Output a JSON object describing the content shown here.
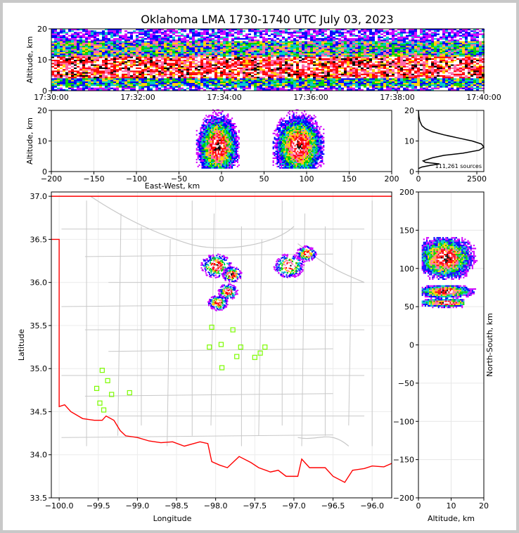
{
  "title": "Oklahoma LMA 1730-1740 UTC July 03, 2023",
  "source_count": "111,261 sources",
  "colors": {
    "density_low": "#0000ff",
    "density_mid": "#00d000",
    "density_high": "#ff0000",
    "density_peak": "#000000",
    "state_border": "#ff0000",
    "county_lines": "#c8c8c8",
    "station_markers": "#7cfc00"
  },
  "chart_data": [
    {
      "panel": "altitude-vs-time",
      "type": "heatmap",
      "xlabel": "",
      "ylabel": "Altitude, km",
      "x_ticks": [
        "17:30:00",
        "17:32:00",
        "17:34:00",
        "17:36:00",
        "17:38:00",
        "17:40:00"
      ],
      "xlim": [
        "17:30:00",
        "17:40:00"
      ],
      "ylim": [
        0,
        20
      ],
      "y_ticks": [
        0,
        10,
        20
      ],
      "grid": false,
      "dense_altitude_band_km": [
        4,
        11
      ]
    },
    {
      "panel": "altitude-vs-east-west",
      "type": "heatmap",
      "xlabel": "East-West, km",
      "ylabel": "Altitude, km",
      "xlim": [
        -200,
        200
      ],
      "x_ticks": [
        -200,
        -150,
        -100,
        -50,
        0,
        50,
        100,
        150,
        200
      ],
      "ylim": [
        0,
        20
      ],
      "y_ticks": [
        0,
        10,
        20
      ],
      "grid": true,
      "clusters": [
        {
          "x_range": [
            -30,
            20
          ],
          "z_range": [
            1,
            20
          ]
        },
        {
          "x_range": [
            60,
            120
          ],
          "z_range": [
            1,
            20
          ]
        }
      ]
    },
    {
      "panel": "altitude-histogram",
      "type": "line",
      "xlabel": "",
      "ylabel": "",
      "xlim": [
        0,
        2800
      ],
      "x_ticks": [
        0,
        2500
      ],
      "ylim": [
        0,
        20
      ],
      "y_ticks": [
        0,
        10,
        20
      ],
      "grid": true,
      "x": [
        0,
        150,
        500,
        900,
        300,
        200,
        600,
        1100,
        1900,
        2600,
        2800,
        2700,
        2300,
        1700,
        1100,
        600,
        300,
        150,
        60,
        20,
        0
      ],
      "y": [
        1,
        1.5,
        2,
        2.5,
        3,
        3.5,
        4.5,
        5.3,
        6,
        7,
        8,
        9,
        10,
        11,
        12,
        13,
        14,
        15,
        16.5,
        18,
        20
      ]
    },
    {
      "panel": "plan-view-map",
      "type": "scatter",
      "xlabel": "Longitude",
      "ylabel": "Latitude",
      "xlim": [
        -100.1,
        -95.75
      ],
      "ylim": [
        33.5,
        37.05
      ],
      "x_ticks": [
        -100.0,
        -99.5,
        -99.0,
        -98.5,
        -98.0,
        -97.5,
        -97.0,
        -96.5,
        -96.0
      ],
      "y_ticks": [
        33.5,
        34.0,
        34.5,
        35.0,
        35.5,
        36.0,
        36.5,
        37.0
      ],
      "grid": true,
      "stations": {
        "lon": [
          -99.45,
          -99.38,
          -99.52,
          -99.48,
          -99.43,
          -99.33,
          -99.1,
          -98.05,
          -98.08,
          -97.93,
          -97.92,
          -97.78,
          -97.73,
          -97.68,
          -97.5,
          -97.43,
          -97.37
        ],
        "lat": [
          34.98,
          34.86,
          34.77,
          34.6,
          34.52,
          34.7,
          34.72,
          35.48,
          35.25,
          35.28,
          35.01,
          35.45,
          35.14,
          35.25,
          35.13,
          35.18,
          35.25
        ]
      },
      "storm_cells": [
        {
          "lon": -98.0,
          "lat": 36.2
        },
        {
          "lon": -97.8,
          "lat": 36.1
        },
        {
          "lon": -97.85,
          "lat": 35.9
        },
        {
          "lon": -97.98,
          "lat": 35.77
        },
        {
          "lon": -97.07,
          "lat": 36.2
        },
        {
          "lon": -96.85,
          "lat": 36.34
        }
      ]
    },
    {
      "panel": "north-south-vs-altitude",
      "type": "heatmap",
      "xlabel": "Altitude, km",
      "ylabel": "North-South, km",
      "xlim": [
        0,
        20
      ],
      "x_ticks": [
        0,
        10,
        20
      ],
      "ylim": [
        -200,
        200
      ],
      "y_ticks": [
        -200,
        -150,
        -100,
        -50,
        0,
        50,
        100,
        150,
        200
      ],
      "grid": true,
      "clusters": [
        {
          "y_range": [
            85,
            140
          ],
          "z_range": [
            1,
            20
          ]
        },
        {
          "y_range": [
            60,
            78
          ],
          "z_range": [
            1,
            20
          ]
        },
        {
          "y_range": [
            48,
            60
          ],
          "z_range": [
            1,
            14
          ]
        }
      ]
    }
  ]
}
